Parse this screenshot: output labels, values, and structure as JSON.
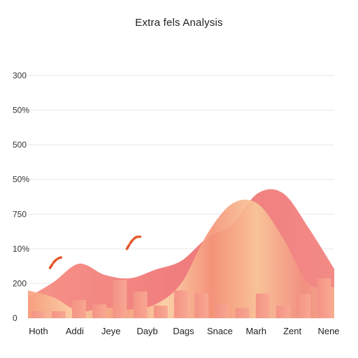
{
  "chart_data": {
    "type": "bar",
    "title": "Extra fels Analysis",
    "xlabel": "",
    "ylabel": "",
    "grid": true,
    "yticks": [
      "300",
      "50%",
      "500",
      "50%",
      "750",
      "10%",
      "200",
      "0"
    ],
    "categories": [
      "Hoth",
      "Addi",
      "Jeye",
      "Dayb",
      "Dags",
      "Snace",
      "Marh",
      "Zent",
      "Nene"
    ],
    "bars": [
      0.2,
      0.2,
      0.52,
      0.4,
      1.1,
      0.77,
      0.36,
      0.8,
      0.72,
      0.4,
      0.3,
      0.71,
      0.36,
      0.7,
      1.15
    ],
    "area_profile": [
      0.6,
      1.04,
      1.57,
      1.25,
      1.15,
      1.4,
      1.65,
      2.3,
      2.7,
      3.6,
      3.6,
      2.6,
      1.42
    ],
    "trend_segments": [
      [
        [
          0.72,
          1.45
        ],
        [
          0.85,
          1.62
        ],
        [
          0.98,
          1.72
        ],
        [
          1.08,
          1.75
        ]
      ],
      [
        [
          3.23,
          2.0
        ],
        [
          3.37,
          2.2
        ],
        [
          3.52,
          2.33
        ],
        [
          3.66,
          2.35
        ]
      ]
    ],
    "colors": {
      "bar": "#f6998a",
      "area_back": "#f08282",
      "area_front": "#f9c79a",
      "trend": "#e2552a"
    }
  }
}
